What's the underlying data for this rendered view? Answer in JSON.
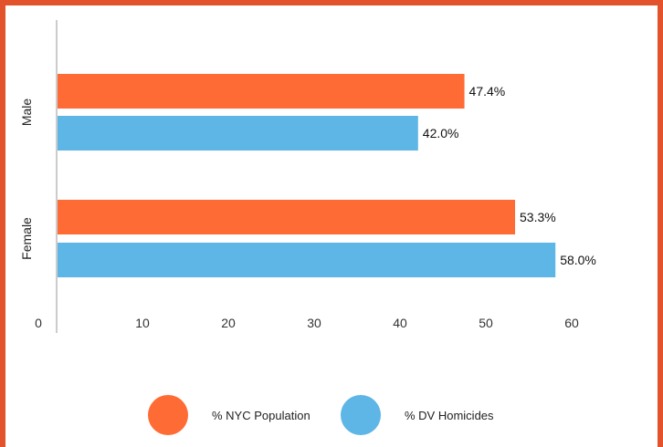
{
  "chart_data": {
    "type": "bar",
    "orientation": "horizontal",
    "categories": [
      "Male",
      "Female"
    ],
    "series": [
      {
        "name": "% NYC Population",
        "values": [
          47.4,
          53.3
        ],
        "labels": [
          "47.4%",
          "53.3%"
        ],
        "color": "#ff6b35"
      },
      {
        "name": "% DV Homicides",
        "values": [
          42.0,
          58.0
        ],
        "labels": [
          "42.0%",
          "58.0%"
        ],
        "color": "#5db6e5"
      }
    ],
    "xlim": [
      0,
      60
    ],
    "xticks": [
      "0",
      "10",
      "20",
      "30",
      "40",
      "50",
      "60"
    ],
    "grid": false,
    "legend_position": "bottom"
  },
  "colors": {
    "frame": "#e2532b",
    "axis": "#cccccc"
  }
}
